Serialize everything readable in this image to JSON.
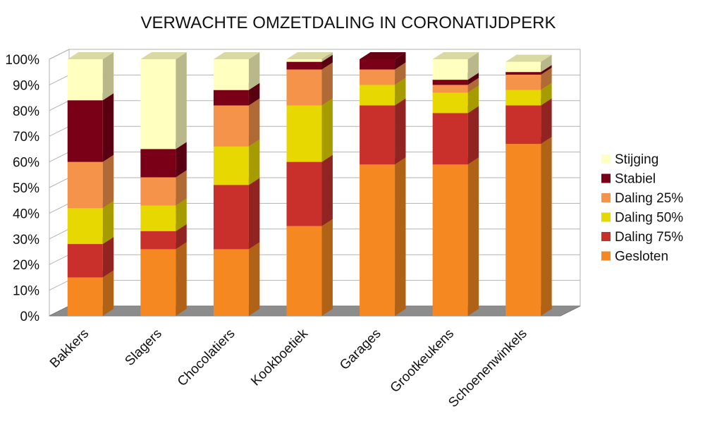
{
  "chart_data": {
    "type": "bar",
    "stacked": true,
    "style": "3d",
    "title": "VERWACHTE OMZETDALING IN CORONATIJDPERK",
    "xlabel": "",
    "ylabel": "",
    "ylim": [
      0,
      100
    ],
    "y_ticks": [
      "0%",
      "10%",
      "20%",
      "30%",
      "40%",
      "50%",
      "60%",
      "70%",
      "80%",
      "90%",
      "100%"
    ],
    "grid": true,
    "legend_position": "right",
    "categories": [
      "Bakkers",
      "Slagers",
      "Chocolatiers",
      "Kookboetiek",
      "Garages",
      "Grootkeukens",
      "Schoenenwinkels"
    ],
    "series": [
      {
        "name": "Gesloten",
        "color": "#f58820",
        "values": [
          15,
          26,
          26,
          35,
          59,
          59,
          67
        ]
      },
      {
        "name": "Daling 75%",
        "color": "#c9302c",
        "values": [
          13,
          7,
          25,
          25,
          23,
          20,
          15
        ]
      },
      {
        "name": "Daling 50%",
        "color": "#e6d800",
        "values": [
          14,
          10,
          15,
          22,
          8,
          8,
          6
        ]
      },
      {
        "name": "Daling 25%",
        "color": "#f5934a",
        "values": [
          18,
          11,
          16,
          14,
          6,
          3,
          6
        ]
      },
      {
        "name": "Stabiel",
        "color": "#7a0017",
        "values": [
          24,
          11,
          6,
          3,
          4,
          2,
          1
        ]
      },
      {
        "name": "Stijging",
        "color": "#ffffc0",
        "values": [
          16,
          35,
          12,
          1,
          0,
          8,
          4
        ]
      }
    ]
  }
}
